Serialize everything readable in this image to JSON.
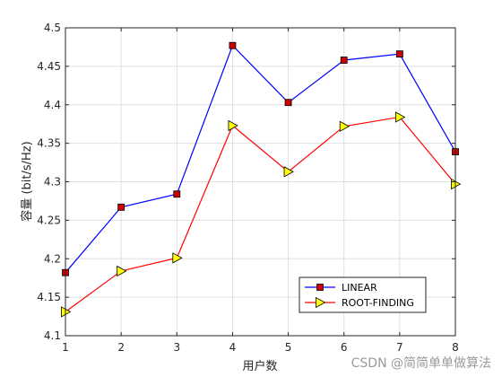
{
  "chart_data": {
    "type": "line",
    "x": [
      1,
      2,
      3,
      4,
      5,
      6,
      7,
      8
    ],
    "xlabel": "用户数",
    "ylabel": "容量 (bit/s/Hz)",
    "xlim": [
      1,
      8
    ],
    "ylim": [
      4.1,
      4.5
    ],
    "xticks": [
      "1",
      "2",
      "3",
      "4",
      "5",
      "6",
      "7",
      "8"
    ],
    "yticks": [
      "4.1",
      "4.15",
      "4.2",
      "4.25",
      "4.3",
      "4.35",
      "4.4",
      "4.45",
      "4.5"
    ],
    "grid": true,
    "legend_position": "bottom-right",
    "series": [
      {
        "name": "LINEAR",
        "color": "#0000ff",
        "marker": "square",
        "marker_color": "#cc0000",
        "values": [
          4.182,
          4.267,
          4.284,
          4.477,
          4.403,
          4.458,
          4.466,
          4.339
        ]
      },
      {
        "name": "ROOT-FINDING",
        "color": "#ff0000",
        "marker": "triangle-right",
        "marker_color": "#ffff00",
        "values": [
          4.131,
          4.184,
          4.201,
          4.373,
          4.313,
          4.372,
          4.384,
          4.297
        ]
      }
    ]
  },
  "watermark": "CSDN @简简单单做算法"
}
